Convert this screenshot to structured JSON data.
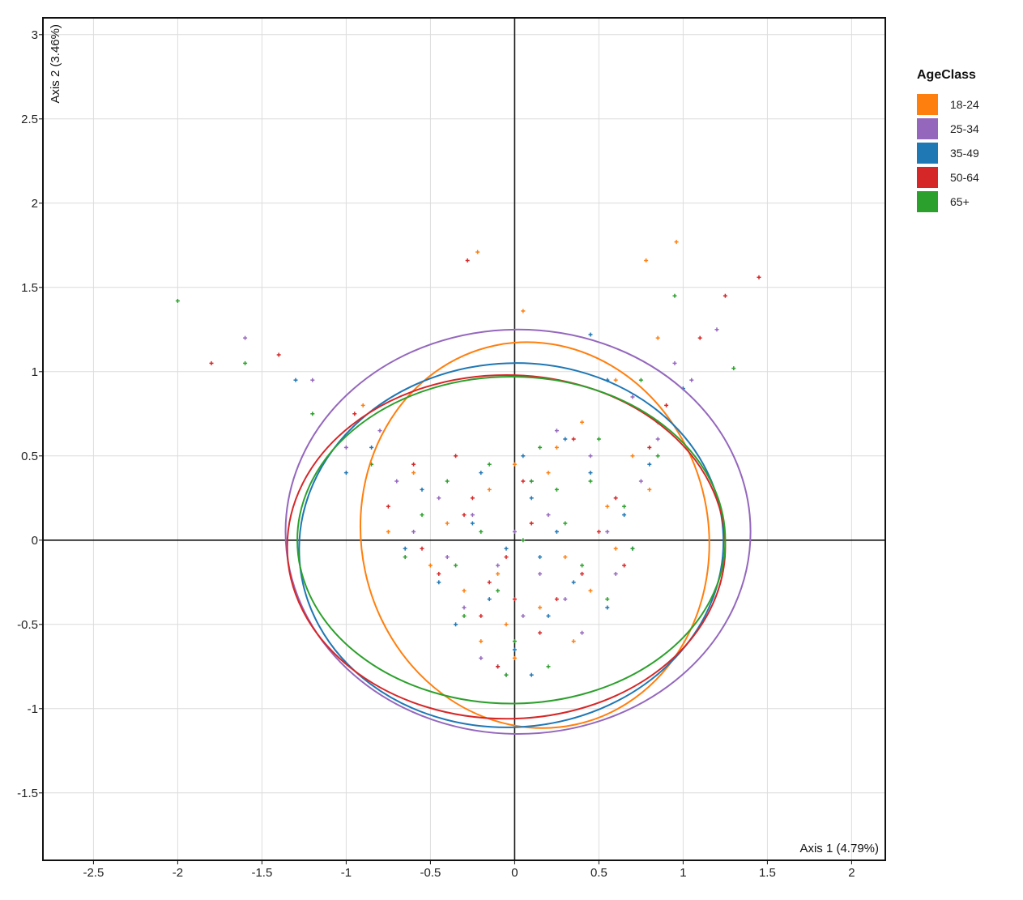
{
  "chart_data": {
    "type": "scatter",
    "xlabel": "Axis 1 (4.79%)",
    "ylabel": "Axis 2 (3.46%)",
    "xlim": [
      -2.8,
      2.2
    ],
    "ylim": [
      -1.9,
      3.1
    ],
    "x_ticks": [
      -2.5,
      -2,
      -1.5,
      -1,
      -0.5,
      0,
      0.5,
      1,
      1.5,
      2
    ],
    "y_ticks": [
      -1.5,
      -1,
      -0.5,
      0,
      0.5,
      1,
      1.5,
      2,
      2.5,
      3
    ],
    "x_tick_labels": [
      "-2.5",
      "-2",
      "-1.5",
      "-1",
      "-0.5",
      "0",
      "0.5",
      "1",
      "1.5",
      "2"
    ],
    "y_tick_labels": [
      "-1.5",
      "-1",
      "-0.5",
      "0",
      "0.5",
      "1",
      "1.5",
      "2",
      "2.5",
      "3"
    ],
    "grid": true,
    "legend": {
      "title": "AgeClass",
      "placement": "right"
    },
    "series": [
      {
        "name": "18-24",
        "color": "#ff7f0e",
        "ellipse": {
          "cx": 0.12,
          "cy": 0.03,
          "rx": 1.03,
          "ry": 1.15,
          "angle_deg": -12
        },
        "points": [
          [
            0.05,
            1.36
          ],
          [
            -0.22,
            1.71
          ],
          [
            0.96,
            1.77
          ],
          [
            0.78,
            1.66
          ],
          [
            0.85,
            1.2
          ],
          [
            0.6,
            0.95
          ],
          [
            0.4,
            0.7
          ],
          [
            0.2,
            0.4
          ],
          [
            0.1,
            0.1
          ],
          [
            -0.1,
            -0.2
          ],
          [
            -0.05,
            -0.5
          ],
          [
            0.0,
            -0.7
          ],
          [
            -0.3,
            -0.3
          ],
          [
            0.3,
            -0.1
          ],
          [
            0.55,
            0.2
          ],
          [
            0.7,
            0.5
          ],
          [
            -0.6,
            0.4
          ],
          [
            -0.9,
            0.8
          ],
          [
            -0.4,
            0.1
          ],
          [
            0.15,
            -0.4
          ],
          [
            0.45,
            -0.3
          ],
          [
            -0.2,
            -0.6
          ],
          [
            0.25,
            0.55
          ],
          [
            -0.75,
            0.05
          ],
          [
            0.8,
            0.3
          ],
          [
            -0.5,
            -0.15
          ],
          [
            0.6,
            -0.05
          ],
          [
            -0.15,
            0.3
          ],
          [
            0.35,
            -0.6
          ],
          [
            0.0,
            0.45
          ]
        ]
      },
      {
        "name": "25-34",
        "color": "#9467bd",
        "ellipse": {
          "cx": 0.02,
          "cy": 0.05,
          "rx": 1.38,
          "ry": 1.2,
          "angle_deg": 0
        },
        "points": [
          [
            1.2,
            1.25
          ],
          [
            0.95,
            1.05
          ],
          [
            0.7,
            0.85
          ],
          [
            0.45,
            0.5
          ],
          [
            0.2,
            0.15
          ],
          [
            -0.1,
            -0.15
          ],
          [
            0.05,
            -0.45
          ],
          [
            -0.2,
            -0.7
          ],
          [
            0.3,
            -0.35
          ],
          [
            -0.45,
            0.25
          ],
          [
            -0.8,
            0.65
          ],
          [
            -1.2,
            0.95
          ],
          [
            -0.6,
            0.05
          ],
          [
            0.55,
            0.05
          ],
          [
            0.75,
            0.35
          ],
          [
            -0.3,
            -0.4
          ],
          [
            0.1,
            0.35
          ],
          [
            -0.05,
            -0.8
          ],
          [
            0.4,
            -0.55
          ],
          [
            -0.7,
            0.35
          ],
          [
            0.85,
            0.6
          ],
          [
            -1.0,
            0.55
          ],
          [
            0.25,
            0.65
          ],
          [
            -0.4,
            -0.1
          ],
          [
            0.6,
            -0.2
          ],
          [
            0.0,
            0.05
          ],
          [
            1.05,
            0.95
          ],
          [
            -1.6,
            1.2
          ],
          [
            0.15,
            -0.2
          ],
          [
            -0.25,
            0.15
          ]
        ]
      },
      {
        "name": "35-49",
        "color": "#1f77b4",
        "ellipse": {
          "cx": -0.02,
          "cy": -0.03,
          "rx": 1.26,
          "ry": 1.08,
          "angle_deg": -4
        },
        "points": [
          [
            0.45,
            1.22
          ],
          [
            0.55,
            0.95
          ],
          [
            0.3,
            0.6
          ],
          [
            0.1,
            0.25
          ],
          [
            -0.05,
            -0.05
          ],
          [
            -0.15,
            -0.35
          ],
          [
            0.0,
            -0.65
          ],
          [
            0.1,
            -0.8
          ],
          [
            -0.35,
            -0.5
          ],
          [
            0.35,
            -0.25
          ],
          [
            0.65,
            0.15
          ],
          [
            0.85,
            0.7
          ],
          [
            -0.55,
            0.3
          ],
          [
            -0.85,
            0.55
          ],
          [
            -1.3,
            0.95
          ],
          [
            0.2,
            -0.45
          ],
          [
            -0.25,
            0.1
          ],
          [
            0.45,
            0.4
          ],
          [
            0.7,
            -0.05
          ],
          [
            -0.65,
            -0.05
          ],
          [
            0.05,
            0.5
          ],
          [
            -0.45,
            -0.25
          ],
          [
            0.25,
            0.05
          ],
          [
            0.8,
            0.45
          ],
          [
            -1.0,
            0.4
          ],
          [
            1.0,
            0.9
          ],
          [
            -0.1,
            -0.75
          ],
          [
            0.55,
            -0.4
          ],
          [
            -0.2,
            0.4
          ],
          [
            0.15,
            -0.1
          ]
        ]
      },
      {
        "name": "50-64",
        "color": "#d62728",
        "ellipse": {
          "cx": -0.05,
          "cy": -0.04,
          "rx": 1.3,
          "ry": 1.02,
          "angle_deg": 0
        },
        "points": [
          [
            1.45,
            1.56
          ],
          [
            1.25,
            1.45
          ],
          [
            1.1,
            1.2
          ],
          [
            0.9,
            0.8
          ],
          [
            -0.28,
            1.66
          ],
          [
            -0.95,
            0.75
          ],
          [
            -0.6,
            0.45
          ],
          [
            -0.3,
            0.15
          ],
          [
            -0.05,
            -0.1
          ],
          [
            -0.2,
            -0.45
          ],
          [
            -0.1,
            -0.75
          ],
          [
            0.15,
            -0.55
          ],
          [
            0.4,
            -0.2
          ],
          [
            0.6,
            0.25
          ],
          [
            0.8,
            0.55
          ],
          [
            -0.45,
            -0.2
          ],
          [
            0.05,
            0.35
          ],
          [
            -0.75,
            0.2
          ],
          [
            0.25,
            -0.35
          ],
          [
            -0.35,
            0.5
          ],
          [
            0.5,
            0.05
          ],
          [
            -1.4,
            1.1
          ],
          [
            -1.8,
            1.05
          ],
          [
            0.1,
            0.1
          ],
          [
            -0.15,
            -0.25
          ],
          [
            0.35,
            0.6
          ],
          [
            -0.55,
            -0.05
          ],
          [
            0.65,
            -0.15
          ],
          [
            0.0,
            -0.35
          ],
          [
            -0.25,
            0.25
          ]
        ]
      },
      {
        "name": "65+",
        "color": "#2ca02c",
        "ellipse": {
          "cx": -0.02,
          "cy": 0.0,
          "rx": 1.27,
          "ry": 0.97,
          "angle_deg": 0
        },
        "points": [
          [
            1.3,
            1.02
          ],
          [
            0.95,
            1.45
          ],
          [
            0.75,
            0.95
          ],
          [
            0.5,
            0.6
          ],
          [
            0.25,
            0.3
          ],
          [
            0.05,
            0.0
          ],
          [
            -0.1,
            -0.3
          ],
          [
            0.0,
            -0.6
          ],
          [
            0.2,
            -0.75
          ],
          [
            -0.3,
            -0.45
          ],
          [
            0.4,
            -0.15
          ],
          [
            0.65,
            0.2
          ],
          [
            -0.55,
            0.15
          ],
          [
            -0.85,
            0.45
          ],
          [
            -1.2,
            0.75
          ],
          [
            -1.6,
            1.05
          ],
          [
            -2.0,
            1.42
          ],
          [
            0.15,
            0.55
          ],
          [
            -0.4,
            0.35
          ],
          [
            0.55,
            -0.35
          ],
          [
            -0.2,
            0.05
          ],
          [
            0.3,
            0.1
          ],
          [
            -0.65,
            -0.1
          ],
          [
            0.85,
            0.5
          ],
          [
            -0.05,
            -0.8
          ],
          [
            0.1,
            0.35
          ],
          [
            -0.35,
            -0.15
          ],
          [
            0.7,
            -0.05
          ],
          [
            -0.15,
            0.45
          ],
          [
            0.45,
            0.35
          ]
        ]
      }
    ]
  }
}
